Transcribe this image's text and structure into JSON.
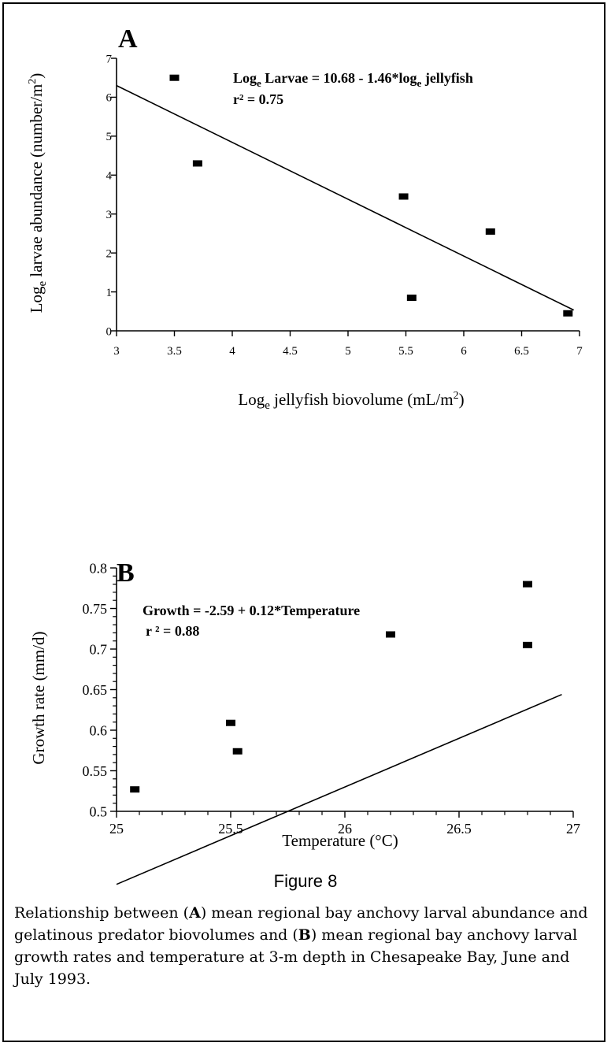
{
  "figure": {
    "title": "Figure 8",
    "caption_parts": [
      "Relationship between (",
      "A",
      ") mean regional bay anchovy larval abundance and gelatinous predator biovolumes and (",
      "B",
      ") mean regional bay anchovy larval growth rates and temperature at 3-m depth in Chesapeake Bay, June and July 1993."
    ]
  },
  "chart_data": [
    {
      "type": "scatter",
      "panel_label": "A",
      "xlabel_main": "Log",
      "xlabel_sub": "e",
      "xlabel_rest": " jellyfish biovolume (mL/m",
      "xlabel_sup": "2",
      "xlabel_end": ")",
      "ylabel_main": "Log",
      "ylabel_sub": "e",
      "ylabel_rest": " larvae abundance (number/m",
      "ylabel_sup": "2",
      "ylabel_end": ")",
      "xlim": [
        3,
        7
      ],
      "ylim": [
        0,
        7
      ],
      "x_ticks": [
        "3",
        "3.5",
        "4",
        "4.5",
        "5",
        "5.5",
        "6",
        "6.5",
        "7"
      ],
      "y_ticks": [
        "0",
        "1",
        "2",
        "3",
        "4",
        "5",
        "6",
        "7"
      ],
      "x": [
        3.5,
        3.7,
        5.48,
        5.55,
        6.23,
        6.9
      ],
      "y": [
        6.5,
        4.3,
        3.45,
        0.85,
        2.55,
        0.45
      ],
      "fit": {
        "intercept": 10.68,
        "slope": -1.46,
        "x_range": [
          3,
          6.95
        ]
      },
      "equation_parts": [
        "Log",
        "e",
        "  Larvae = 10.68 - 1.46*log",
        "e",
        " jellyfish"
      ],
      "r2_text": "r² = 0.75"
    },
    {
      "type": "scatter",
      "panel_label": "B",
      "xlabel": "Temperature (°C)",
      "ylabel": "Growth rate (mm/d)",
      "xlim": [
        25,
        27
      ],
      "ylim": [
        0.5,
        0.8
      ],
      "x_ticks": [
        "25",
        "25.5",
        "26",
        "26.5",
        "27"
      ],
      "y_ticks": [
        "0.5",
        "0.55",
        "0.6",
        "0.65",
        "0.7",
        "0.75",
        "0.8"
      ],
      "x": [
        25.08,
        25.5,
        25.53,
        26.2,
        26.8,
        26.8
      ],
      "y": [
        0.527,
        0.609,
        0.574,
        0.718,
        0.78,
        0.705
      ],
      "fit": {
        "intercept": -2.59,
        "slope": 0.12,
        "x_range": [
          25,
          26.95
        ]
      },
      "equation_text": "Growth = -2.59 + 0.12*Temperature",
      "r2_text": "r ² = 0.88"
    }
  ]
}
